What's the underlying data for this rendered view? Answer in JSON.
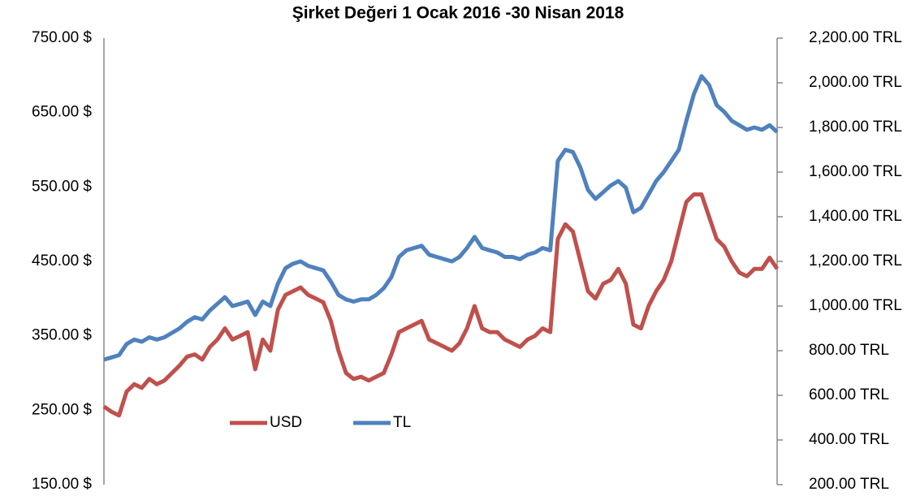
{
  "chart_data": {
    "type": "line",
    "title": "Şirket Değeri 1 Ocak 2016 -30 Nisan 2018",
    "series": [
      {
        "name": "USD",
        "color": "#c0504d",
        "axis": "y",
        "values": [
          255,
          248,
          243,
          275,
          285,
          280,
          292,
          285,
          290,
          300,
          310,
          322,
          325,
          318,
          335,
          345,
          360,
          345,
          350,
          355,
          305,
          345,
          330,
          385,
          405,
          410,
          415,
          405,
          400,
          395,
          370,
          330,
          300,
          292,
          295,
          290,
          295,
          300,
          325,
          355,
          360,
          365,
          370,
          345,
          340,
          335,
          330,
          340,
          360,
          390,
          360,
          355,
          355,
          345,
          340,
          335,
          345,
          350,
          360,
          355,
          480,
          500,
          490,
          450,
          410,
          400,
          420,
          425,
          440,
          420,
          365,
          360,
          390,
          410,
          425,
          450,
          490,
          530,
          540,
          540,
          510,
          480,
          470,
          450,
          435,
          430,
          440,
          440,
          455,
          440
        ]
      },
      {
        "name": "TL",
        "color": "#4f81bd",
        "axis": "y2",
        "values": [
          760,
          770,
          780,
          830,
          850,
          840,
          860,
          850,
          860,
          880,
          900,
          930,
          950,
          940,
          980,
          1010,
          1040,
          1000,
          1010,
          1020,
          960,
          1020,
          1000,
          1100,
          1170,
          1190,
          1200,
          1180,
          1170,
          1160,
          1110,
          1050,
          1030,
          1020,
          1030,
          1030,
          1050,
          1080,
          1130,
          1220,
          1250,
          1260,
          1270,
          1230,
          1220,
          1210,
          1200,
          1220,
          1260,
          1310,
          1260,
          1250,
          1240,
          1220,
          1220,
          1210,
          1230,
          1240,
          1260,
          1250,
          1650,
          1700,
          1690,
          1620,
          1520,
          1480,
          1510,
          1540,
          1560,
          1530,
          1420,
          1440,
          1500,
          1560,
          1600,
          1650,
          1700,
          1830,
          1950,
          2030,
          1990,
          1900,
          1870,
          1830,
          1810,
          1790,
          1800,
          1790,
          1810,
          1780
        ]
      }
    ],
    "ylim": [
      150,
      750
    ],
    "yticks": [
      {
        "value": 150,
        "label": "150.00 $"
      },
      {
        "value": 250,
        "label": "250.00 $"
      },
      {
        "value": 350,
        "label": "350.00 $"
      },
      {
        "value": 450,
        "label": "450.00 $"
      },
      {
        "value": 550,
        "label": "550.00 $"
      },
      {
        "value": 650,
        "label": "650.00 $"
      },
      {
        "value": 750,
        "label": "750.00 $"
      }
    ],
    "y2lim": [
      200,
      2200
    ],
    "y2ticks": [
      {
        "value": 200,
        "label": "200.00 TRL"
      },
      {
        "value": 400,
        "label": "400.00 TRL"
      },
      {
        "value": 600,
        "label": "600.00 TRL"
      },
      {
        "value": 800,
        "label": "800.00 TRL"
      },
      {
        "value": 1000,
        "label": "1,000.00 TRL"
      },
      {
        "value": 1200,
        "label": "1,200.00 TRL"
      },
      {
        "value": 1400,
        "label": "1,400.00 TRL"
      },
      {
        "value": 1600,
        "label": "1,600.00 TRL"
      },
      {
        "value": 1800,
        "label": "1,800.00 TRL"
      },
      {
        "value": 2000,
        "label": "2,000.00 TRL"
      },
      {
        "value": 2200,
        "label": "2,200.00 TRL"
      }
    ]
  }
}
